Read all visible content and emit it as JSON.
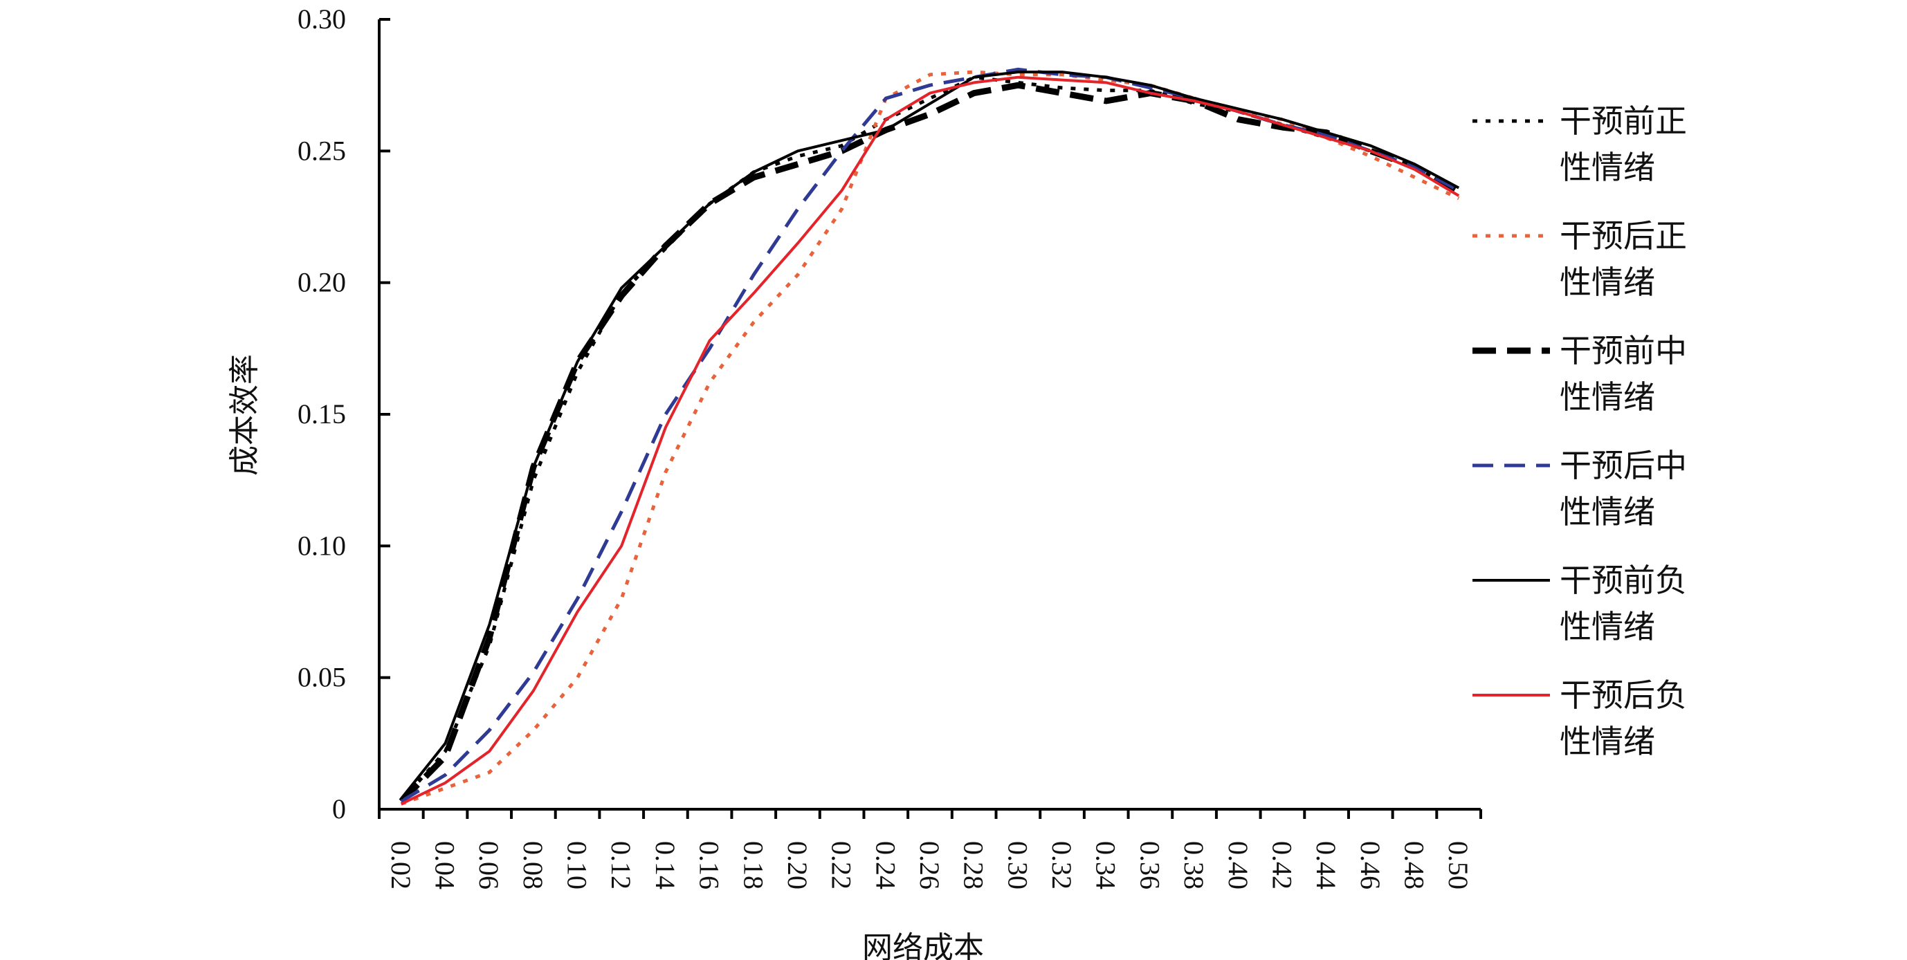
{
  "chart_data": {
    "type": "line",
    "xlabel": "网络成本",
    "ylabel": "成本效率",
    "xlim": [
      0.01,
      0.51
    ],
    "ylim": [
      0,
      0.3
    ],
    "x_ticks": [
      "0.02",
      "0.04",
      "0.06",
      "0.08",
      "0.10",
      "0.12",
      "0.14",
      "0.16",
      "0.18",
      "0.20",
      "0.22",
      "0.24",
      "0.26",
      "0.28",
      "0.30",
      "0.32",
      "0.34",
      "0.36",
      "0.38",
      "0.40",
      "0.42",
      "0.44",
      "0.46",
      "0.48",
      "0.50"
    ],
    "y_ticks": [
      {
        "value": 0.3,
        "label": "0.30"
      },
      {
        "value": 0.25,
        "label": "0.25"
      },
      {
        "value": 0.2,
        "label": "0.20"
      },
      {
        "value": 0.15,
        "label": "0.15"
      },
      {
        "value": 0.1,
        "label": "0.10"
      },
      {
        "value": 0.05,
        "label": "0.05"
      },
      {
        "value": 0,
        "label": "0"
      }
    ],
    "x": [
      0.02,
      0.04,
      0.06,
      0.08,
      0.1,
      0.12,
      0.14,
      0.16,
      0.18,
      0.2,
      0.22,
      0.24,
      0.26,
      0.28,
      0.3,
      0.32,
      0.34,
      0.36,
      0.38,
      0.4,
      0.42,
      0.44,
      0.46,
      0.48,
      0.5
    ],
    "legend_position": "right",
    "series": [
      {
        "name": "干预前正性情绪",
        "color": "#000000",
        "style": "dotted",
        "values": [
          0.003,
          0.022,
          0.062,
          0.125,
          0.166,
          0.196,
          0.213,
          0.23,
          0.242,
          0.248,
          0.252,
          0.262,
          0.27,
          0.278,
          0.276,
          0.274,
          0.273,
          0.273,
          0.268,
          0.265,
          0.26,
          0.255,
          0.25,
          0.244,
          0.234
        ]
      },
      {
        "name": "干预后正性情绪",
        "color": "#e8623c",
        "style": "dotted",
        "values": [
          0.002,
          0.008,
          0.014,
          0.03,
          0.05,
          0.08,
          0.128,
          0.162,
          0.185,
          0.203,
          0.228,
          0.27,
          0.279,
          0.28,
          0.279,
          0.279,
          0.277,
          0.275,
          0.27,
          0.265,
          0.262,
          0.255,
          0.248,
          0.24,
          0.232
        ]
      },
      {
        "name": "干预前中性情绪",
        "color": "#000000",
        "style": "dashed-thick",
        "values": [
          0.003,
          0.02,
          0.065,
          0.13,
          0.17,
          0.195,
          0.214,
          0.23,
          0.24,
          0.245,
          0.25,
          0.258,
          0.264,
          0.272,
          0.275,
          0.272,
          0.269,
          0.272,
          0.269,
          0.262,
          0.259,
          0.257,
          0.25,
          0.244,
          0.234
        ]
      },
      {
        "name": "干预后中性情绪",
        "color": "#2f3a94",
        "style": "dashed",
        "values": [
          0.003,
          0.013,
          0.03,
          0.052,
          0.08,
          0.113,
          0.15,
          0.175,
          0.203,
          0.228,
          0.25,
          0.27,
          0.275,
          0.278,
          0.281,
          0.279,
          0.278,
          0.274,
          0.27,
          0.265,
          0.26,
          0.256,
          0.25,
          0.244,
          0.235
        ]
      },
      {
        "name": "干预前负性情绪",
        "color": "#000000",
        "style": "solid",
        "values": [
          0.004,
          0.025,
          0.07,
          0.13,
          0.17,
          0.198,
          0.214,
          0.23,
          0.242,
          0.25,
          0.254,
          0.258,
          0.268,
          0.278,
          0.28,
          0.28,
          0.278,
          0.275,
          0.27,
          0.266,
          0.262,
          0.257,
          0.252,
          0.245,
          0.236
        ]
      },
      {
        "name": "干预后负性情绪",
        "color": "#e3242b",
        "style": "solid",
        "values": [
          0.002,
          0.01,
          0.022,
          0.045,
          0.075,
          0.1,
          0.145,
          0.178,
          0.196,
          0.215,
          0.235,
          0.262,
          0.272,
          0.276,
          0.278,
          0.277,
          0.276,
          0.272,
          0.269,
          0.265,
          0.26,
          0.255,
          0.25,
          0.243,
          0.233
        ]
      }
    ]
  },
  "legend": [
    {
      "line1": "干预前正",
      "line2": "性情绪"
    },
    {
      "line1": "干预后正",
      "line2": "性情绪"
    },
    {
      "line1": "干预前中",
      "line2": "性情绪"
    },
    {
      "line1": "干预后中",
      "line2": "性情绪"
    },
    {
      "line1": "干预前负",
      "line2": "性情绪"
    },
    {
      "line1": "干预后负",
      "line2": "性情绪"
    }
  ]
}
